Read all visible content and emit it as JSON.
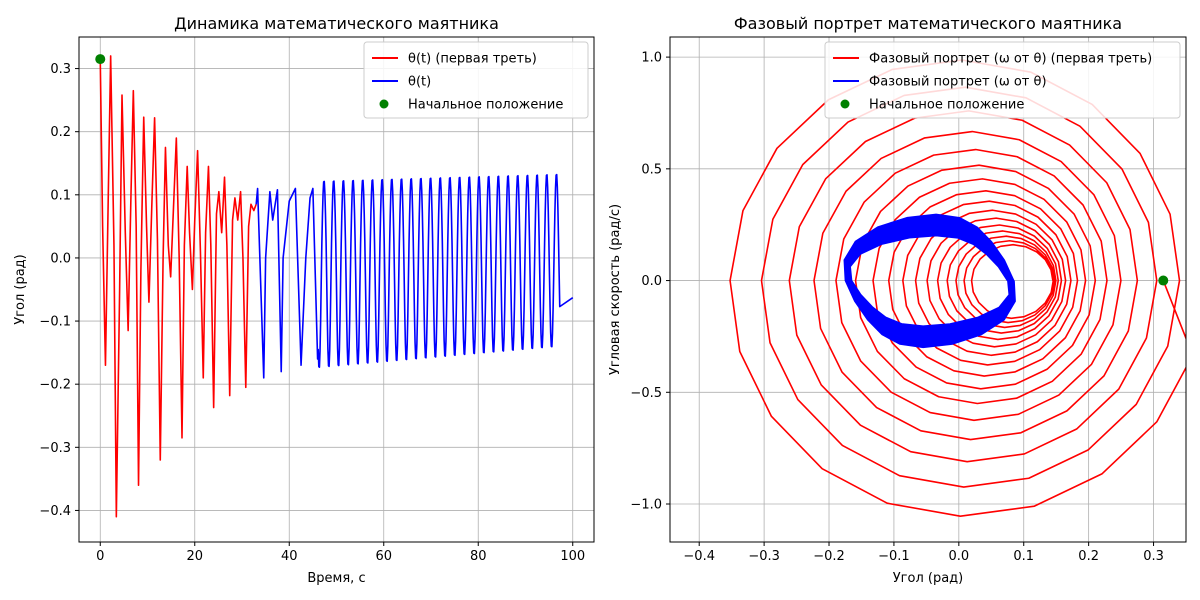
{
  "colors": {
    "first_third": "#ff0000",
    "rest": "#0000ff",
    "start": "#008000",
    "grid": "#b0b0b0"
  },
  "chart_data": [
    {
      "type": "line",
      "title": "Динамика математического маятника",
      "xlabel": "Время, с",
      "ylabel": "Угол (рад)",
      "xlim": [
        -4.5,
        104.5
      ],
      "ylim": [
        -0.45,
        0.35
      ],
      "xticks": [
        0,
        20,
        40,
        60,
        80,
        100
      ],
      "xtick_labels": [
        "0",
        "20",
        "40",
        "60",
        "80",
        "100"
      ],
      "yticks": [
        -0.4,
        -0.3,
        -0.2,
        -0.1,
        0.0,
        0.1,
        0.2,
        0.3
      ],
      "ytick_labels": [
        "−0.4",
        "−0.3",
        "−0.2",
        "−0.1",
        "0.0",
        "0.1",
        "0.2",
        "0.3"
      ],
      "grid": true,
      "legend_position": "top-right",
      "legend": [
        "θ(t) (первая треть)",
        "θ(t)",
        "Начальное положение"
      ],
      "series": [
        {
          "name": "θ(t) (первая треть)",
          "color": "#ff0000",
          "segment": "first_third",
          "x": [
            0.0,
            0.5,
            1.1,
            1.7,
            2.2,
            2.9,
            3.4,
            4.1,
            4.6,
            5.3,
            5.9,
            6.5,
            7.0,
            7.6,
            8.1,
            8.6,
            9.2,
            9.8,
            10.3,
            10.9,
            11.5,
            12.1,
            12.7,
            13.3,
            13.8,
            14.4,
            14.9,
            15.5,
            16.1,
            16.7,
            17.3,
            17.8,
            18.4,
            18.9,
            19.5,
            20.0,
            20.6,
            21.2,
            21.8,
            22.3,
            22.9,
            23.4,
            24.0,
            24.6,
            25.1,
            25.7,
            26.3,
            26.8,
            27.4,
            28.0,
            28.5,
            29.1,
            29.7,
            30.2,
            30.8,
            31.4,
            31.9,
            32.5,
            33.0
          ],
          "values": [
            0.315,
            0.05,
            -0.17,
            0.1,
            0.32,
            0.02,
            -0.41,
            -0.05,
            0.258,
            0.04,
            -0.115,
            0.1,
            0.265,
            0.05,
            -0.36,
            -0.02,
            0.223,
            0.05,
            -0.07,
            0.08,
            0.222,
            0.03,
            -0.32,
            0.0,
            0.175,
            0.02,
            -0.03,
            0.08,
            0.19,
            0.0,
            -0.285,
            0.02,
            0.145,
            0.04,
            -0.05,
            0.06,
            0.17,
            0.01,
            -0.19,
            0.04,
            0.145,
            0.02,
            -0.237,
            0.07,
            0.105,
            0.04,
            0.128,
            0.02,
            -0.218,
            0.06,
            0.095,
            0.06,
            0.105,
            0.0,
            -0.205,
            0.05,
            0.085,
            0.075,
            0.085
          ]
        },
        {
          "name": "θ(t)",
          "color": "#0000ff",
          "segment": "rest",
          "x": [
            33.0,
            33.3,
            34.6,
            35.0,
            35.9,
            36.5,
            37.5,
            38.3,
            38.7,
            40.0,
            41.3,
            42.5,
            43.5,
            44.4,
            45.0,
            46.0
          ],
          "values": [
            0.085,
            0.11,
            -0.19,
            0.0,
            0.105,
            0.06,
            0.108,
            -0.18,
            0.0,
            0.09,
            0.11,
            -0.17,
            0.0,
            0.095,
            0.11,
            -0.16
          ]
        },
        {
          "name": "Начальное положение",
          "color": "#008000",
          "type": "scatter",
          "x": [
            0.0
          ],
          "values": [
            0.315
          ]
        }
      ]
    },
    {
      "type": "line",
      "title": "Фазовый портрет математического маятника",
      "xlabel": "Угол (рад)",
      "ylabel": "Угловая скорость (рад/с)",
      "xlim": [
        -0.445,
        0.35
      ],
      "ylim": [
        -1.17,
        1.09
      ],
      "xticks": [
        -0.4,
        -0.3,
        -0.2,
        -0.1,
        0.0,
        0.1,
        0.2,
        0.3
      ],
      "xtick_labels": [
        "−0.4",
        "−0.3",
        "−0.2",
        "−0.1",
        "0.0",
        "0.1",
        "0.2",
        "0.3"
      ],
      "yticks": [
        -1.0,
        -0.5,
        0.0,
        0.5,
        1.0
      ],
      "ytick_labels": [
        "−1.0",
        "−0.5",
        "0.0",
        "0.5",
        "1.0"
      ],
      "grid": true,
      "legend_position": "top-right",
      "legend": [
        "Фазовый портрет (ω от θ) (первая треть)",
        "Фазовый портрет (ω от θ)",
        "Начальное положение"
      ],
      "series": [
        {
          "name": "Фазовый портрет (ω от θ) (первая треть)",
          "color": "#ff0000",
          "spiral": {
            "theta_start": 0.315,
            "theta_end": 0.085,
            "omega_scale_start": 1.05,
            "omega_scale_end": 0.1,
            "turns": 16
          }
        },
        {
          "name": "Фазовый портрет (ω от θ)",
          "color": "#0000ff",
          "spiral": {
            "theta_center": -0.045,
            "theta_amp_start": 0.13,
            "theta_amp_end": 0.12,
            "omega_amp_start": 0.3,
            "omega_amp_end": 0.2,
            "turns": 18
          }
        },
        {
          "name": "Начальное положение",
          "color": "#008000",
          "type": "scatter",
          "x": [
            0.315
          ],
          "values": [
            0.0
          ]
        }
      ]
    }
  ]
}
